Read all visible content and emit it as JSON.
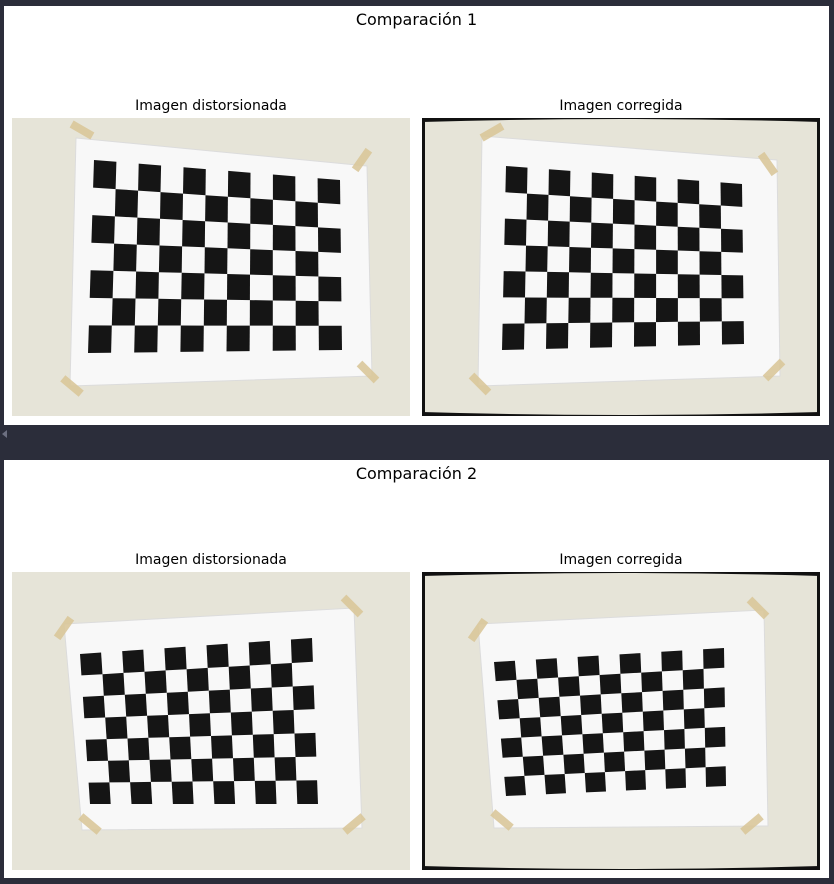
{
  "figures": [
    {
      "title": "Comparación 1",
      "left_title": "Imagen distorsionada",
      "right_title": "Imagen corregida"
    },
    {
      "title": "Comparación 2",
      "left_title": "Imagen distorsionada",
      "right_title": "Imagen corregida"
    }
  ],
  "icons": {
    "collapse": "collapse-arrow-icon"
  },
  "colors": {
    "background": "#2b2d3a",
    "panel": "#ffffff",
    "wall": "#e6e4d8",
    "paper": "#f8f8f8",
    "square": "#151515",
    "tape": "#d9c79a"
  }
}
